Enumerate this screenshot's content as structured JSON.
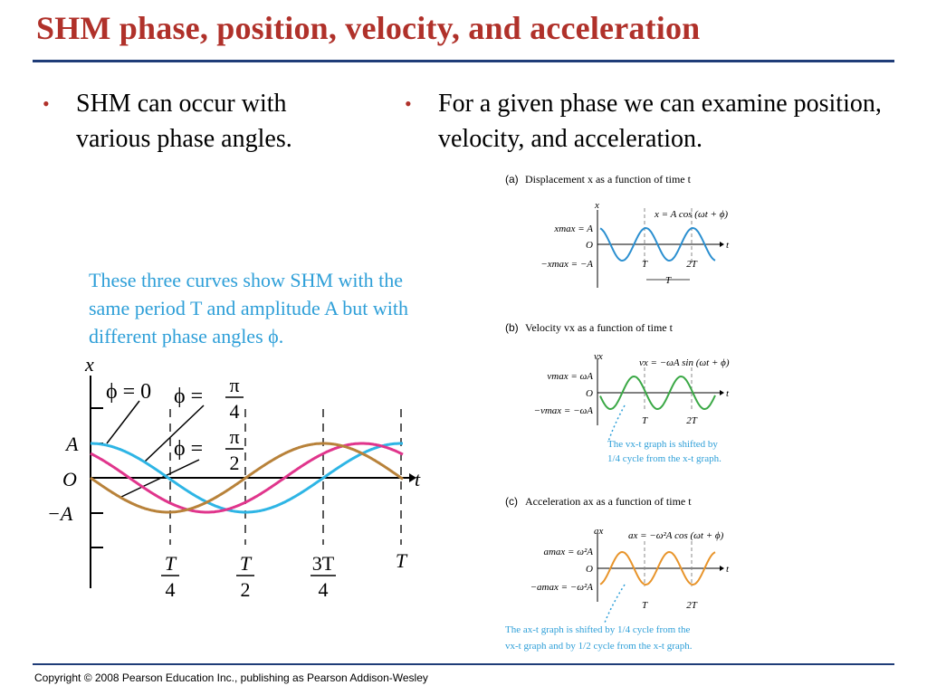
{
  "slide": {
    "title": "SHM phase, position, velocity, and acceleration",
    "bullets": [
      "SHM can occur with various phase angles.",
      "For a given phase we can examine position, velocity, and acceleration."
    ],
    "footer": "Copyright © 2008 Pearson Education Inc., publishing as Pearson Addison-Wesley"
  },
  "colors": {
    "title": "#b0312a",
    "rule": "#1f3c78",
    "caption": "#2e9fd8",
    "phi0": "#2eb5e5",
    "phi_quarter": "#e0358c",
    "phi_half": "#b8823a",
    "velocity": "#3aa845",
    "accel": "#e8942a",
    "displacement": "#2b8fd0"
  },
  "left_figure": {
    "caption": "These three curves show SHM with the same period T and amplitude A but with different phase angles ϕ.",
    "y_axis_label": "x",
    "t_axis_label": "t",
    "y_ticks": {
      "plus": "A",
      "zero": "O",
      "minus": "−A"
    },
    "t_ticks": [
      {
        "num": "T",
        "den": "4"
      },
      {
        "num": "T",
        "den": "2"
      },
      {
        "num": "3T",
        "den": "4"
      },
      {
        "num": "T",
        "den": ""
      }
    ],
    "phase_labels": [
      {
        "lhs": "ϕ = 0",
        "num": "",
        "den": ""
      },
      {
        "lhs": "ϕ =",
        "num": "π",
        "den": "4"
      },
      {
        "lhs": "ϕ =",
        "num": "π",
        "den": "2"
      }
    ]
  },
  "panel_a": {
    "letter": "(a)",
    "heading": "Displacement x as a function of time t",
    "axis_v": "x",
    "axis_t": "t",
    "equation": "x = A cos (ωt + ϕ)",
    "max_label": "xmax = A",
    "origin": "O",
    "min_label": "−xmax = −A",
    "t1": "T",
    "t2": "2T",
    "period_label": "T"
  },
  "panel_b": {
    "letter": "(b)",
    "heading": "Velocity vx as a function of time t",
    "axis_v": "vx",
    "axis_t": "t",
    "equation": "vx = −ωA sin (ωt + ϕ)",
    "max_label": "vmax = ωA",
    "origin": "O",
    "min_label": "−vmax = −ωA",
    "t1": "T",
    "t2": "2T",
    "note_line1": "The vx-t graph is shifted by",
    "note_line2": "1/4 cycle from the x-t graph."
  },
  "panel_c": {
    "letter": "(c)",
    "heading": "Acceleration ax as a function of time t",
    "axis_v": "ax",
    "axis_t": "t",
    "equation": "ax = −ω²A cos (ωt + ϕ)",
    "max_label": "amax = ω²A",
    "origin": "O",
    "min_label": "−amax = −ω²A",
    "t1": "T",
    "t2": "2T",
    "note_line1": "The ax-t graph is shifted by 1/4 cycle from the",
    "note_line2": "vx-t graph and by 1/2 cycle from the x-t graph."
  }
}
